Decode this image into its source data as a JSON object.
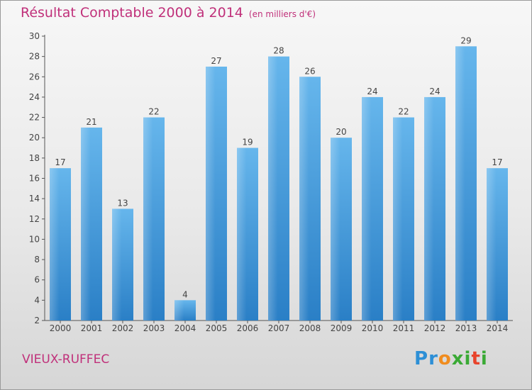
{
  "title": "Résultat Comptable 2000 à 2014",
  "subtitle": "(en milliers d'€)",
  "commune": "VIEUX-RUFFEC",
  "logo": {
    "text": "Proxiti",
    "letters": [
      "P",
      "r",
      "o",
      "x",
      "i",
      "t",
      "i"
    ],
    "colors": [
      "#2d8fd6",
      "#2d8fd6",
      "#f08c1e",
      "#3aaa35",
      "#3aaa35",
      "#e8432b",
      "#3aaa35"
    ]
  },
  "colors": {
    "bar_top": "#66b6ec",
    "bar_bottom": "#2a7fc6",
    "title": "#c0307a",
    "axis": "#555555"
  },
  "chart_data": {
    "type": "bar",
    "title": "Résultat Comptable 2000 à 2014",
    "subtitle": "(en milliers d'€)",
    "categories": [
      "2000",
      "2001",
      "2002",
      "2003",
      "2004",
      "2005",
      "2006",
      "2007",
      "2008",
      "2009",
      "2010",
      "2011",
      "2012",
      "2013",
      "2014"
    ],
    "values": [
      17,
      21,
      13,
      22,
      4,
      27,
      19,
      28,
      26,
      20,
      24,
      22,
      24,
      29,
      17
    ],
    "xlabel": "",
    "ylabel": "",
    "ylim": [
      2,
      30
    ],
    "yticks": [
      2,
      4,
      6,
      8,
      10,
      12,
      14,
      16,
      18,
      20,
      22,
      24,
      26,
      28,
      30
    ],
    "grid": false,
    "legend": "none"
  }
}
